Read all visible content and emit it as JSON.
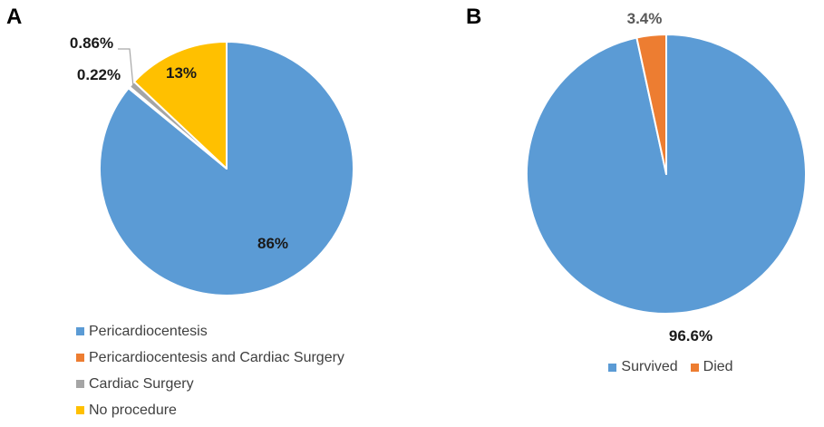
{
  "figure": {
    "background": "#FFFFFF",
    "panels": [
      {
        "id": "A",
        "label": "A"
      },
      {
        "id": "B",
        "label": "B"
      }
    ]
  },
  "chart_data": [
    {
      "type": "pie",
      "panel": "A",
      "title": "",
      "categories": [
        "Pericardiocentesis",
        "Pericardiocentesis and Cardiac Surgery",
        "Cardiac Surgery",
        "No procedure"
      ],
      "values": [
        86,
        0.22,
        0.86,
        13
      ],
      "data_labels": [
        "86%",
        "0.22%",
        "0.86%",
        "13%"
      ],
      "colors": [
        "#5B9BD5",
        "#ED7D31",
        "#A5A5A5",
        "#FFC000"
      ],
      "label_color": "#1A1A1A",
      "slice_border_color": "#FFFFFF",
      "leader_line_color": "#A6A6A6",
      "start_angle_deg": 0,
      "direction": "clockwise",
      "legend_position": "bottom-left"
    },
    {
      "type": "pie",
      "panel": "B",
      "title": "",
      "categories": [
        "Survived",
        "Died"
      ],
      "values": [
        96.6,
        3.4
      ],
      "data_labels": [
        "96.6%",
        "3.4%"
      ],
      "colors": [
        "#5B9BD5",
        "#ED7D31"
      ],
      "label_colors": [
        "#1A1A1A",
        "#595959"
      ],
      "slice_border_color": "#FFFFFF",
      "start_angle_deg": 0,
      "direction": "clockwise",
      "legend_position": "bottom-center"
    }
  ]
}
